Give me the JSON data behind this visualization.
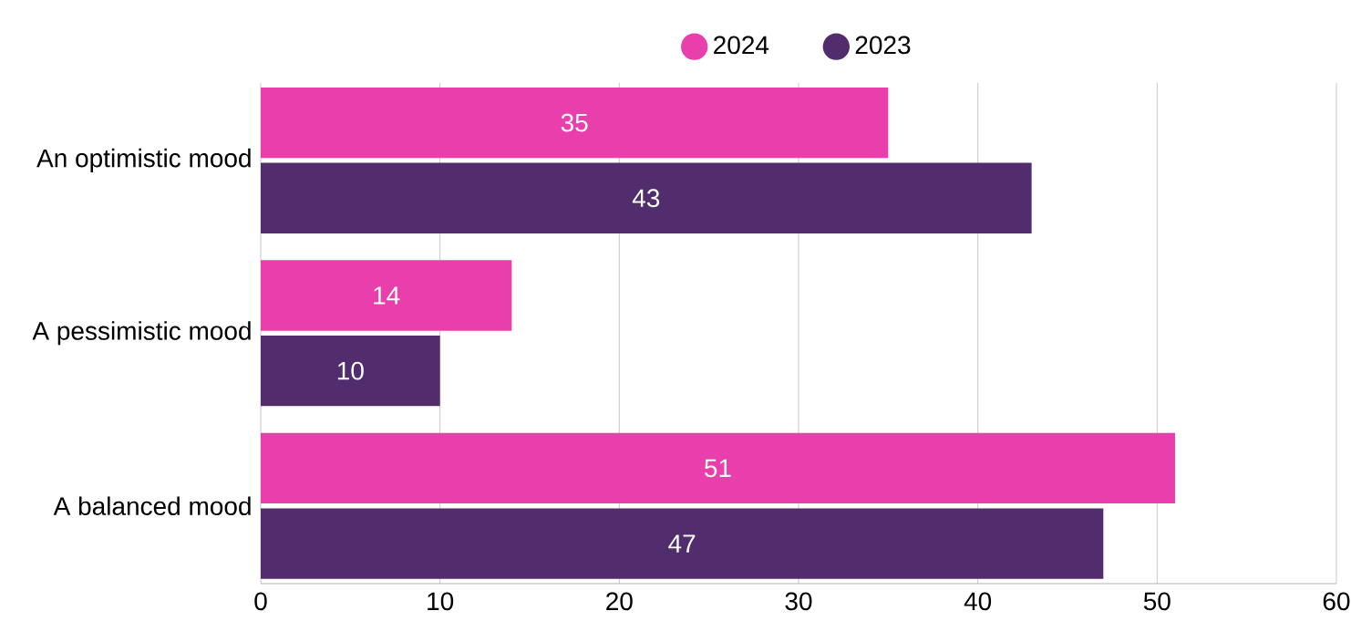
{
  "chart_data": {
    "type": "bar",
    "orientation": "horizontal",
    "categories": [
      "An optimistic mood",
      "A pessimistic mood",
      "A balanced mood"
    ],
    "series": [
      {
        "name": "2024",
        "color": "#e83fad",
        "values": [
          35,
          14,
          51
        ]
      },
      {
        "name": "2023",
        "color": "#512d6d",
        "values": [
          43,
          10,
          47
        ]
      }
    ],
    "xlim": [
      0,
      60
    ],
    "xticks": [
      0,
      10,
      20,
      30,
      40,
      50,
      60
    ],
    "grid": "x",
    "legend": "top",
    "data_labels": true
  }
}
